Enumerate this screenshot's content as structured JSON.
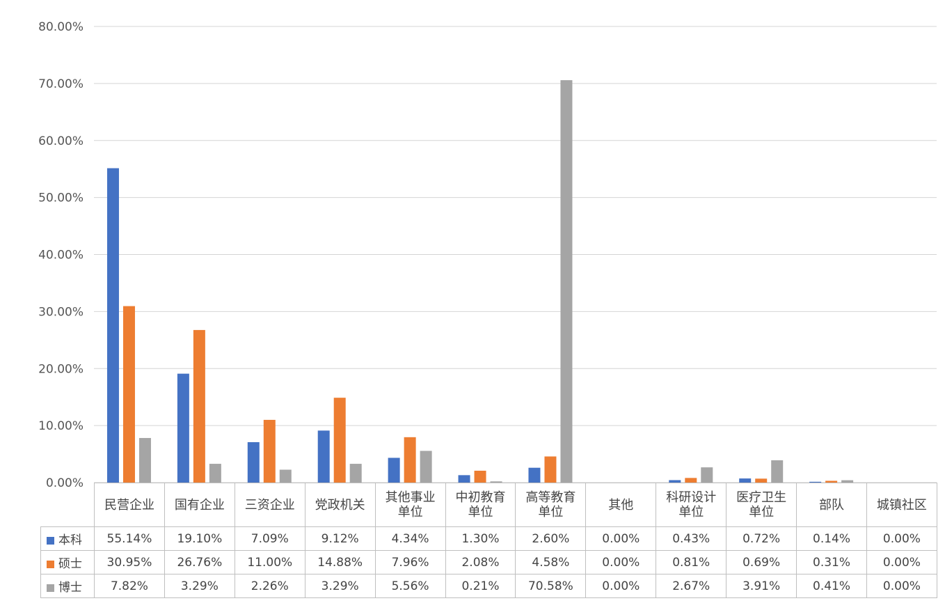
{
  "chart_data": {
    "type": "bar",
    "categories": [
      "民营企业",
      "国有企业",
      "三资企业",
      "党政机关",
      "其他事业单位",
      "中初教育单位",
      "高等教育单位",
      "其他",
      "科研设计单位",
      "医疗卫生单位",
      "部队",
      "城镇社区"
    ],
    "series": [
      {
        "name": "本科",
        "color": "#4472c4",
        "values": [
          55.14,
          19.1,
          7.09,
          9.12,
          4.34,
          1.3,
          2.6,
          0.0,
          0.43,
          0.72,
          0.14,
          0.0
        ],
        "labels": [
          "55.14%",
          "19.10%",
          "7.09%",
          "9.12%",
          "4.34%",
          "1.30%",
          "2.60%",
          "0.00%",
          "0.43%",
          "0.72%",
          "0.14%",
          "0.00%"
        ]
      },
      {
        "name": "硕士",
        "color": "#ed7d31",
        "values": [
          30.95,
          26.76,
          11.0,
          14.88,
          7.96,
          2.08,
          4.58,
          0.0,
          0.81,
          0.69,
          0.31,
          0.0
        ],
        "labels": [
          "30.95%",
          "26.76%",
          "11.00%",
          "14.88%",
          "7.96%",
          "2.08%",
          "4.58%",
          "0.00%",
          "0.81%",
          "0.69%",
          "0.31%",
          "0.00%"
        ]
      },
      {
        "name": "博士",
        "color": "#a5a5a5",
        "values": [
          7.82,
          3.29,
          2.26,
          3.29,
          5.56,
          0.21,
          70.58,
          0.0,
          2.67,
          3.91,
          0.41,
          0.0
        ],
        "labels": [
          "7.82%",
          "3.29%",
          "2.26%",
          "3.29%",
          "5.56%",
          "0.21%",
          "70.58%",
          "0.00%",
          "2.67%",
          "3.91%",
          "0.41%",
          "0.00%"
        ]
      }
    ],
    "ylim": [
      0,
      80
    ],
    "yticks": [
      "0.00%",
      "10.00%",
      "20.00%",
      "30.00%",
      "40.00%",
      "50.00%",
      "60.00%",
      "70.00%",
      "80.00%"
    ],
    "grid": true,
    "legend": "data-table"
  }
}
